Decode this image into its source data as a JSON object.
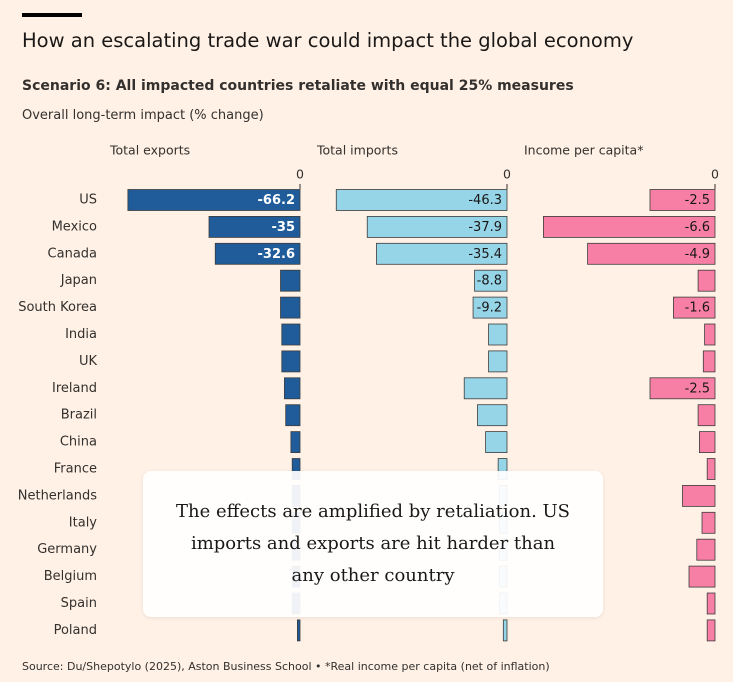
{
  "header": {
    "title": "How an escalating trade war could impact the global economy",
    "subtitle": "Scenario 6: All impacted countries retaliate with equal 25% measures",
    "description": "Overall long-term impact (% change)"
  },
  "footer": {
    "source": "Source: Du/Shepotylo (2025), Aston Business School • *Real income per capita (net of inflation)"
  },
  "tooltip": {
    "text": "The effects are amplified by retaliation. US imports and exports are hit harder than any other country"
  },
  "colors": {
    "exports": "#1f5c99",
    "imports": "#96d4e8",
    "income": "#f77fa6",
    "bar_stroke": "#3d3d3d",
    "label_light": "#ffffff",
    "label_dark": "#1a1817"
  },
  "chart_data": {
    "type": "bar",
    "orientation": "horizontal",
    "categories": [
      "US",
      "Mexico",
      "Canada",
      "Japan",
      "South Korea",
      "India",
      "UK",
      "Ireland",
      "Brazil",
      "China",
      "France",
      "Netherlands",
      "Italy",
      "Germany",
      "Belgium",
      "Spain",
      "Poland"
    ],
    "zero_label": "0",
    "series": [
      {
        "name": "Total exports",
        "xlim": [
          -70,
          0
        ],
        "values": [
          -66.2,
          -35,
          -32.6,
          -7.5,
          -7.5,
          -7,
          -7,
          -6,
          -5.5,
          -3.5,
          -3,
          -3,
          -3,
          -3,
          -3,
          -3,
          -1
        ],
        "labels": [
          "-66.2",
          "-35",
          "-32.6",
          "",
          "",
          "",
          "",
          "",
          "",
          "",
          "",
          "",
          "",
          "",
          "",
          "",
          ""
        ]
      },
      {
        "name": "Total imports",
        "xlim": [
          -48,
          0
        ],
        "values": [
          -46.3,
          -37.9,
          -35.4,
          -8.8,
          -9.2,
          -5,
          -5,
          -11.6,
          -8,
          -5.8,
          -2.4,
          -2,
          -2,
          -2,
          -2,
          -2,
          -1
        ],
        "labels": [
          "-46.3",
          "-37.9",
          "-35.4",
          "-8.8",
          "-9.2",
          "",
          "",
          "",
          "",
          "",
          "",
          "",
          "",
          "",
          "",
          "",
          ""
        ]
      },
      {
        "name": "Income per capita*",
        "xlim": [
          -7,
          0
        ],
        "values": [
          -2.5,
          -6.6,
          -4.9,
          -0.65,
          -1.6,
          -0.4,
          -0.45,
          -2.5,
          -0.65,
          -0.6,
          -0.3,
          -1.25,
          -0.5,
          -0.7,
          -1.0,
          -0.3,
          -0.3
        ],
        "labels": [
          "-2.5",
          "-6.6",
          "-4.9",
          "",
          "-1.6",
          "",
          "",
          "-2.5",
          "",
          "",
          "",
          "",
          "",
          "",
          "",
          "",
          ""
        ]
      }
    ]
  }
}
